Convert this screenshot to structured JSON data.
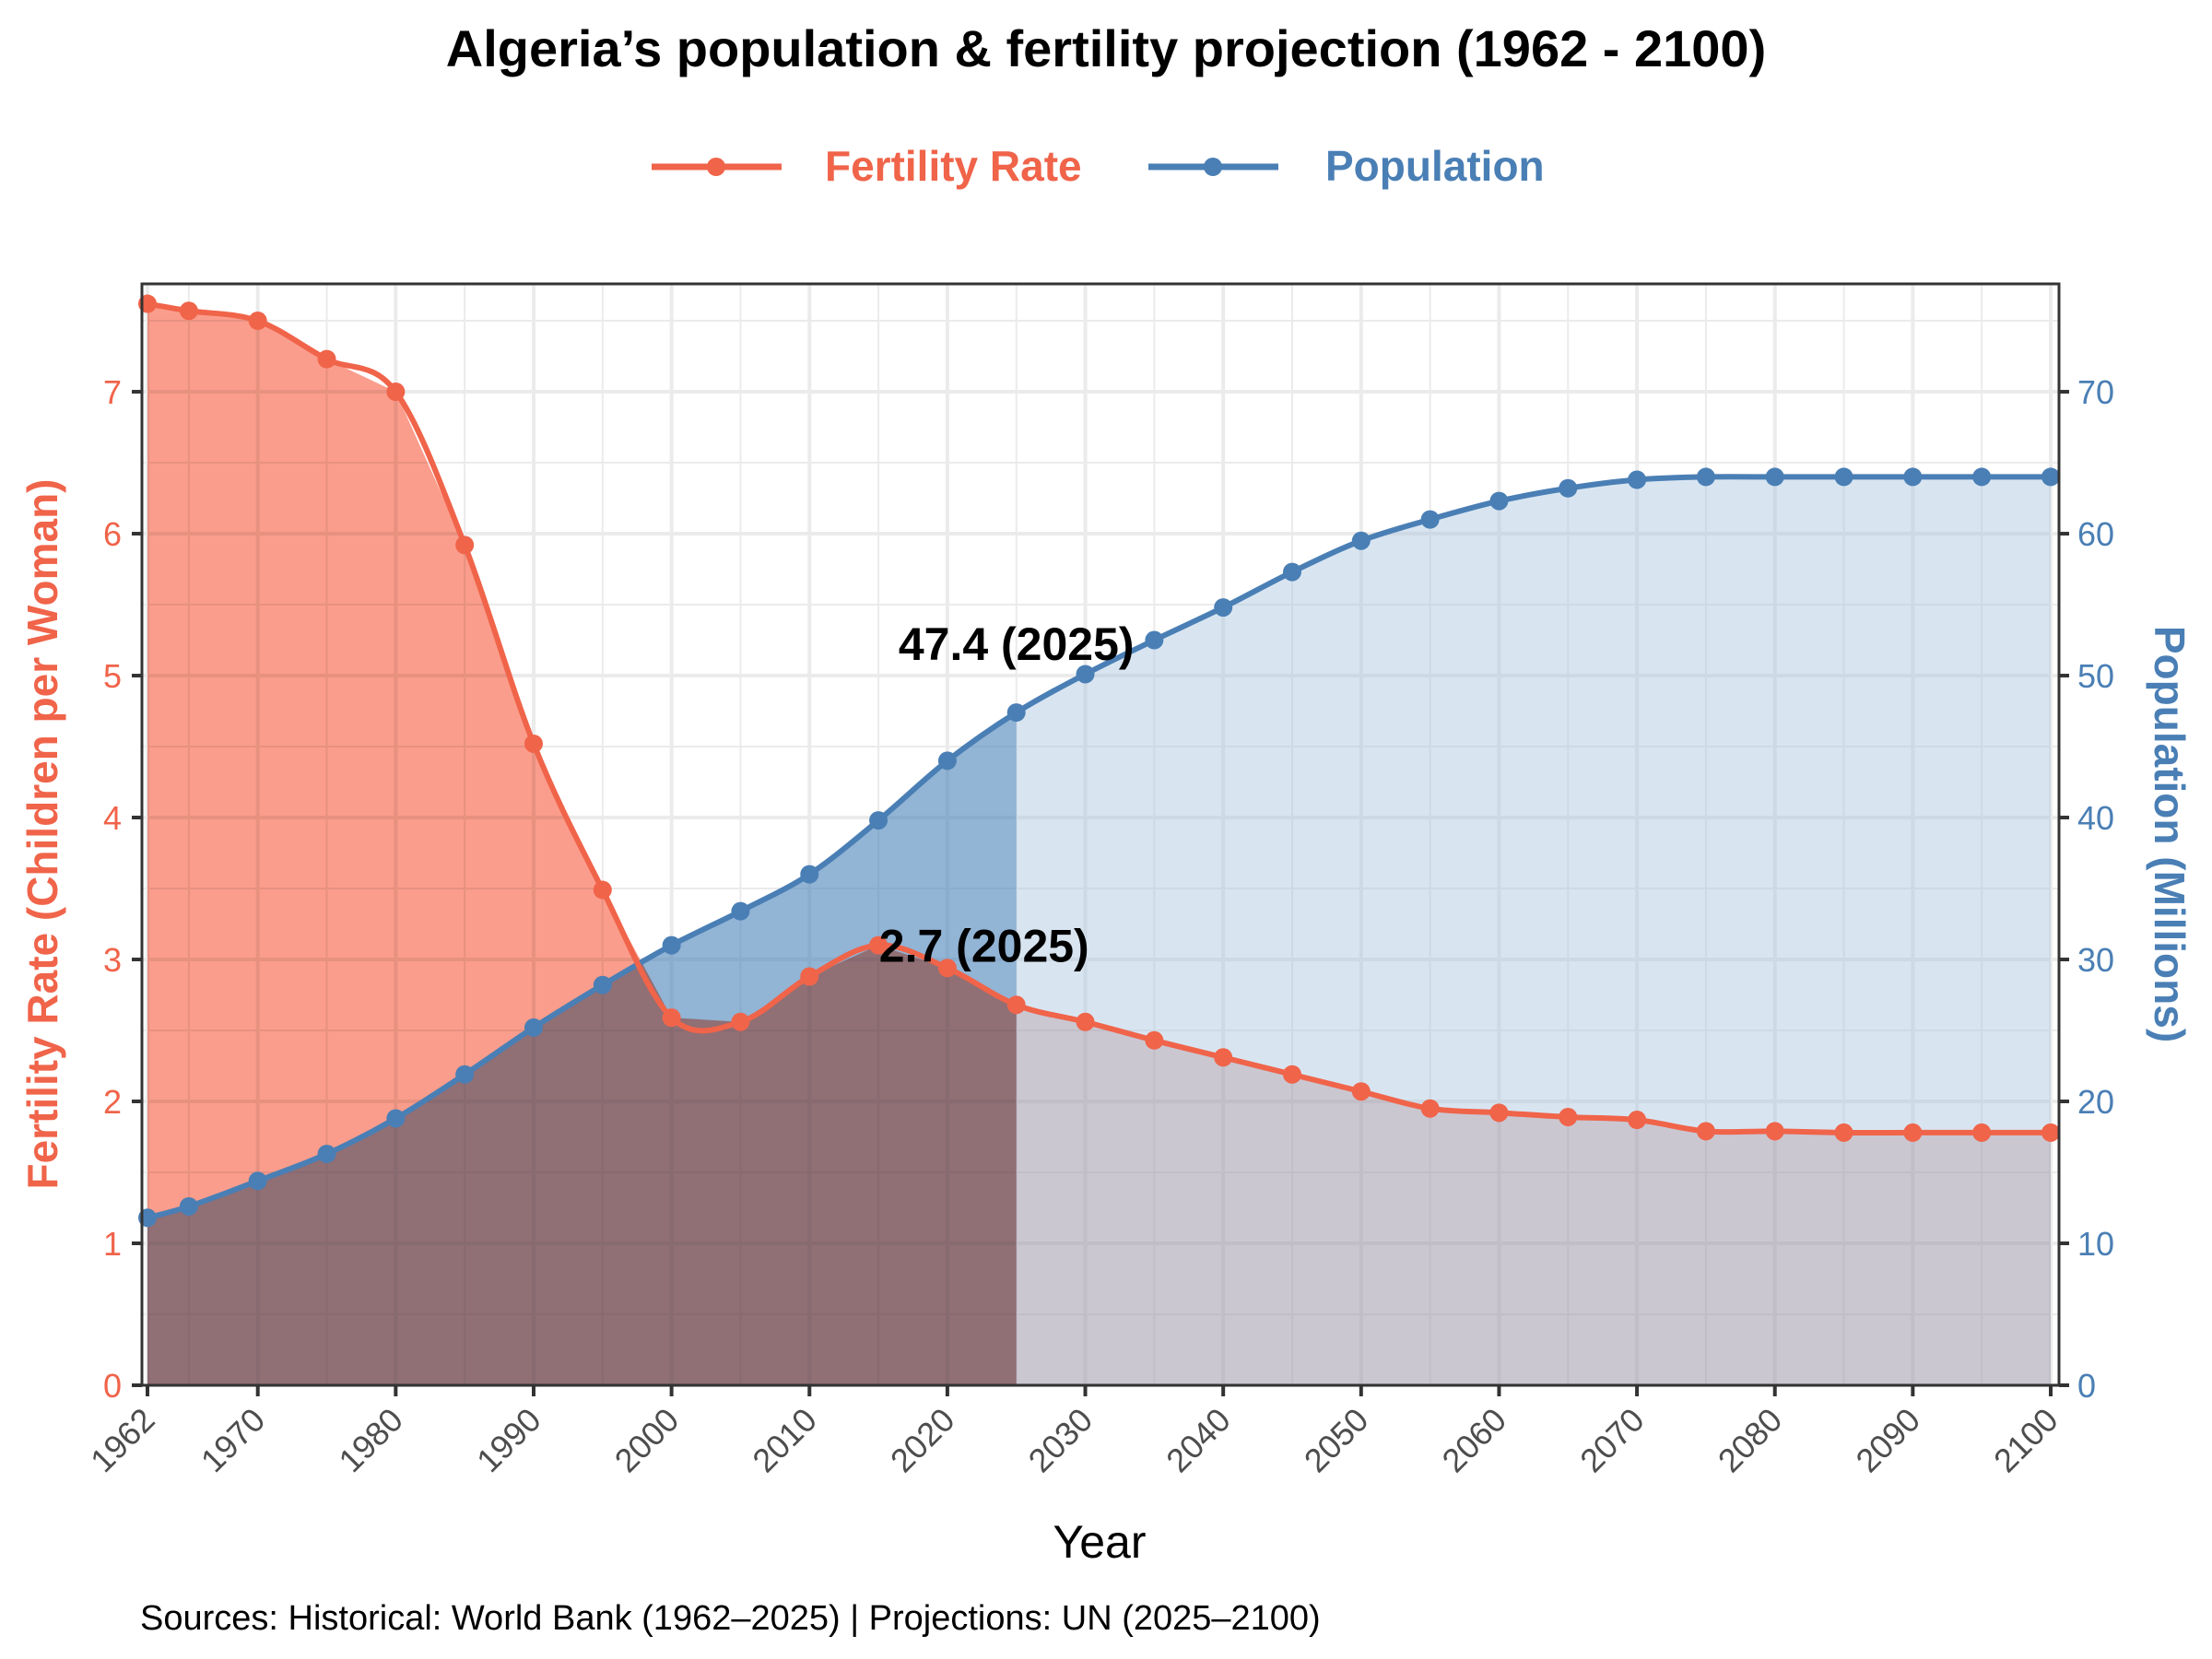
{
  "colors": {
    "fertility": "#f0644a",
    "fertility_fill": "#fa8c78",
    "population": "#4a7fb5",
    "population_hist_fill": "#4f86bb",
    "population_proj_fill": "#a9c6e0",
    "grid": "#ebebeb",
    "axis": "#333333"
  },
  "chart_data": {
    "type": "line",
    "title": "Algeria’s population & fertility projection (1962 - 2100)",
    "xlabel": "Year",
    "ylabel_left": "Fertility Rate (Children per Woman)",
    "ylabel_right": "Population (Millions)",
    "caption": "Sources: Historical: World Bank (1962–2025) | Projections: UN (2025–2100)",
    "xlim": [
      1962,
      2100
    ],
    "ylim_left": [
      0,
      7.76
    ],
    "ylim_right": [
      0,
      77.6
    ],
    "x_ticks": [
      "1962",
      "1970",
      "1980",
      "1990",
      "2000",
      "2010",
      "2020",
      "2030",
      "2040",
      "2050",
      "2060",
      "2070",
      "2080",
      "2090",
      "2100"
    ],
    "y_left_ticks": [
      "0",
      "1",
      "2",
      "3",
      "4",
      "5",
      "6",
      "7"
    ],
    "y_right_ticks": [
      "0",
      "10",
      "20",
      "30",
      "40",
      "50",
      "60",
      "70"
    ],
    "grid": true,
    "legend_position": "top",
    "projection_start": 2025,
    "x": [
      1962,
      1965,
      1970,
      1975,
      1980,
      1985,
      1990,
      1995,
      2000,
      2005,
      2010,
      2015,
      2020,
      2025,
      2030,
      2035,
      2040,
      2045,
      2050,
      2055,
      2060,
      2065,
      2070,
      2075,
      2080,
      2085,
      2090,
      2095,
      2100
    ],
    "series": [
      {
        "name": "Fertility Rate",
        "axis": "left",
        "values": [
          7.62,
          7.57,
          7.5,
          7.23,
          7.0,
          5.92,
          4.52,
          3.49,
          2.59,
          2.56,
          2.88,
          3.1,
          2.94,
          2.68,
          2.56,
          2.43,
          2.31,
          2.19,
          2.07,
          1.95,
          1.92,
          1.89,
          1.87,
          1.79,
          1.79,
          1.78,
          1.78,
          1.78,
          1.78
        ]
      },
      {
        "name": "Population",
        "axis": "right",
        "values": [
          11.8,
          12.6,
          14.4,
          16.3,
          18.8,
          21.9,
          25.2,
          28.2,
          31.0,
          33.4,
          36.0,
          39.8,
          44.0,
          47.4,
          50.1,
          52.5,
          54.8,
          57.3,
          59.5,
          61.0,
          62.3,
          63.2,
          63.8,
          64.0,
          64.0,
          64.0,
          64.0,
          64.0,
          64.0
        ]
      }
    ],
    "annotations": [
      {
        "text": "47.4 (2025)",
        "x": 2025,
        "series": "Population"
      },
      {
        "text": "2.7 (2025)",
        "x": 2025,
        "series": "Fertility Rate"
      }
    ]
  }
}
